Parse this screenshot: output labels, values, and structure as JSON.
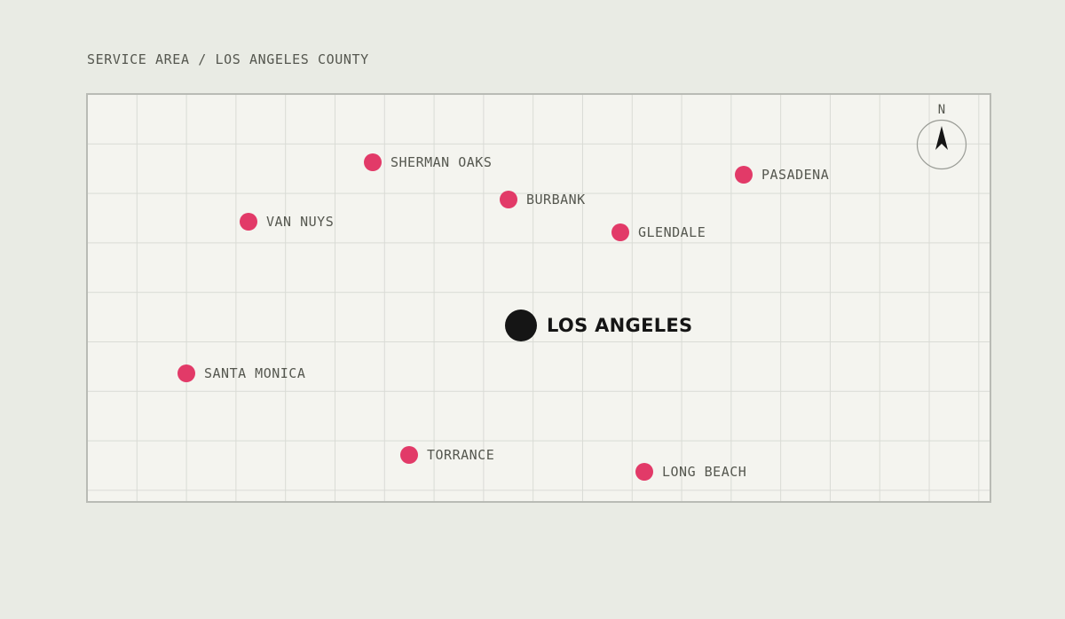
{
  "header": {
    "title": "SERVICE AREA / LOS ANGELES COUNTY"
  },
  "map": {
    "compass": {
      "label": "N",
      "icon": "north-arrow-icon"
    },
    "colors": {
      "background": "#e9ebe4",
      "map_fill": "#f4f4ef",
      "grid": "#d9dbd5",
      "border": "#b9bbb5",
      "city_marker": "#e23a68",
      "major_city_marker": "#151515",
      "label_text": "#55574f"
    },
    "major_city": {
      "name": "LOS ANGELES"
    },
    "cities": [
      {
        "name": "SHERMAN OAKS"
      },
      {
        "name": "PASADENA"
      },
      {
        "name": "BURBANK"
      },
      {
        "name": "VAN NUYS"
      },
      {
        "name": "GLENDALE"
      },
      {
        "name": "SANTA MONICA"
      },
      {
        "name": "TORRANCE"
      },
      {
        "name": "LONG BEACH"
      }
    ]
  }
}
